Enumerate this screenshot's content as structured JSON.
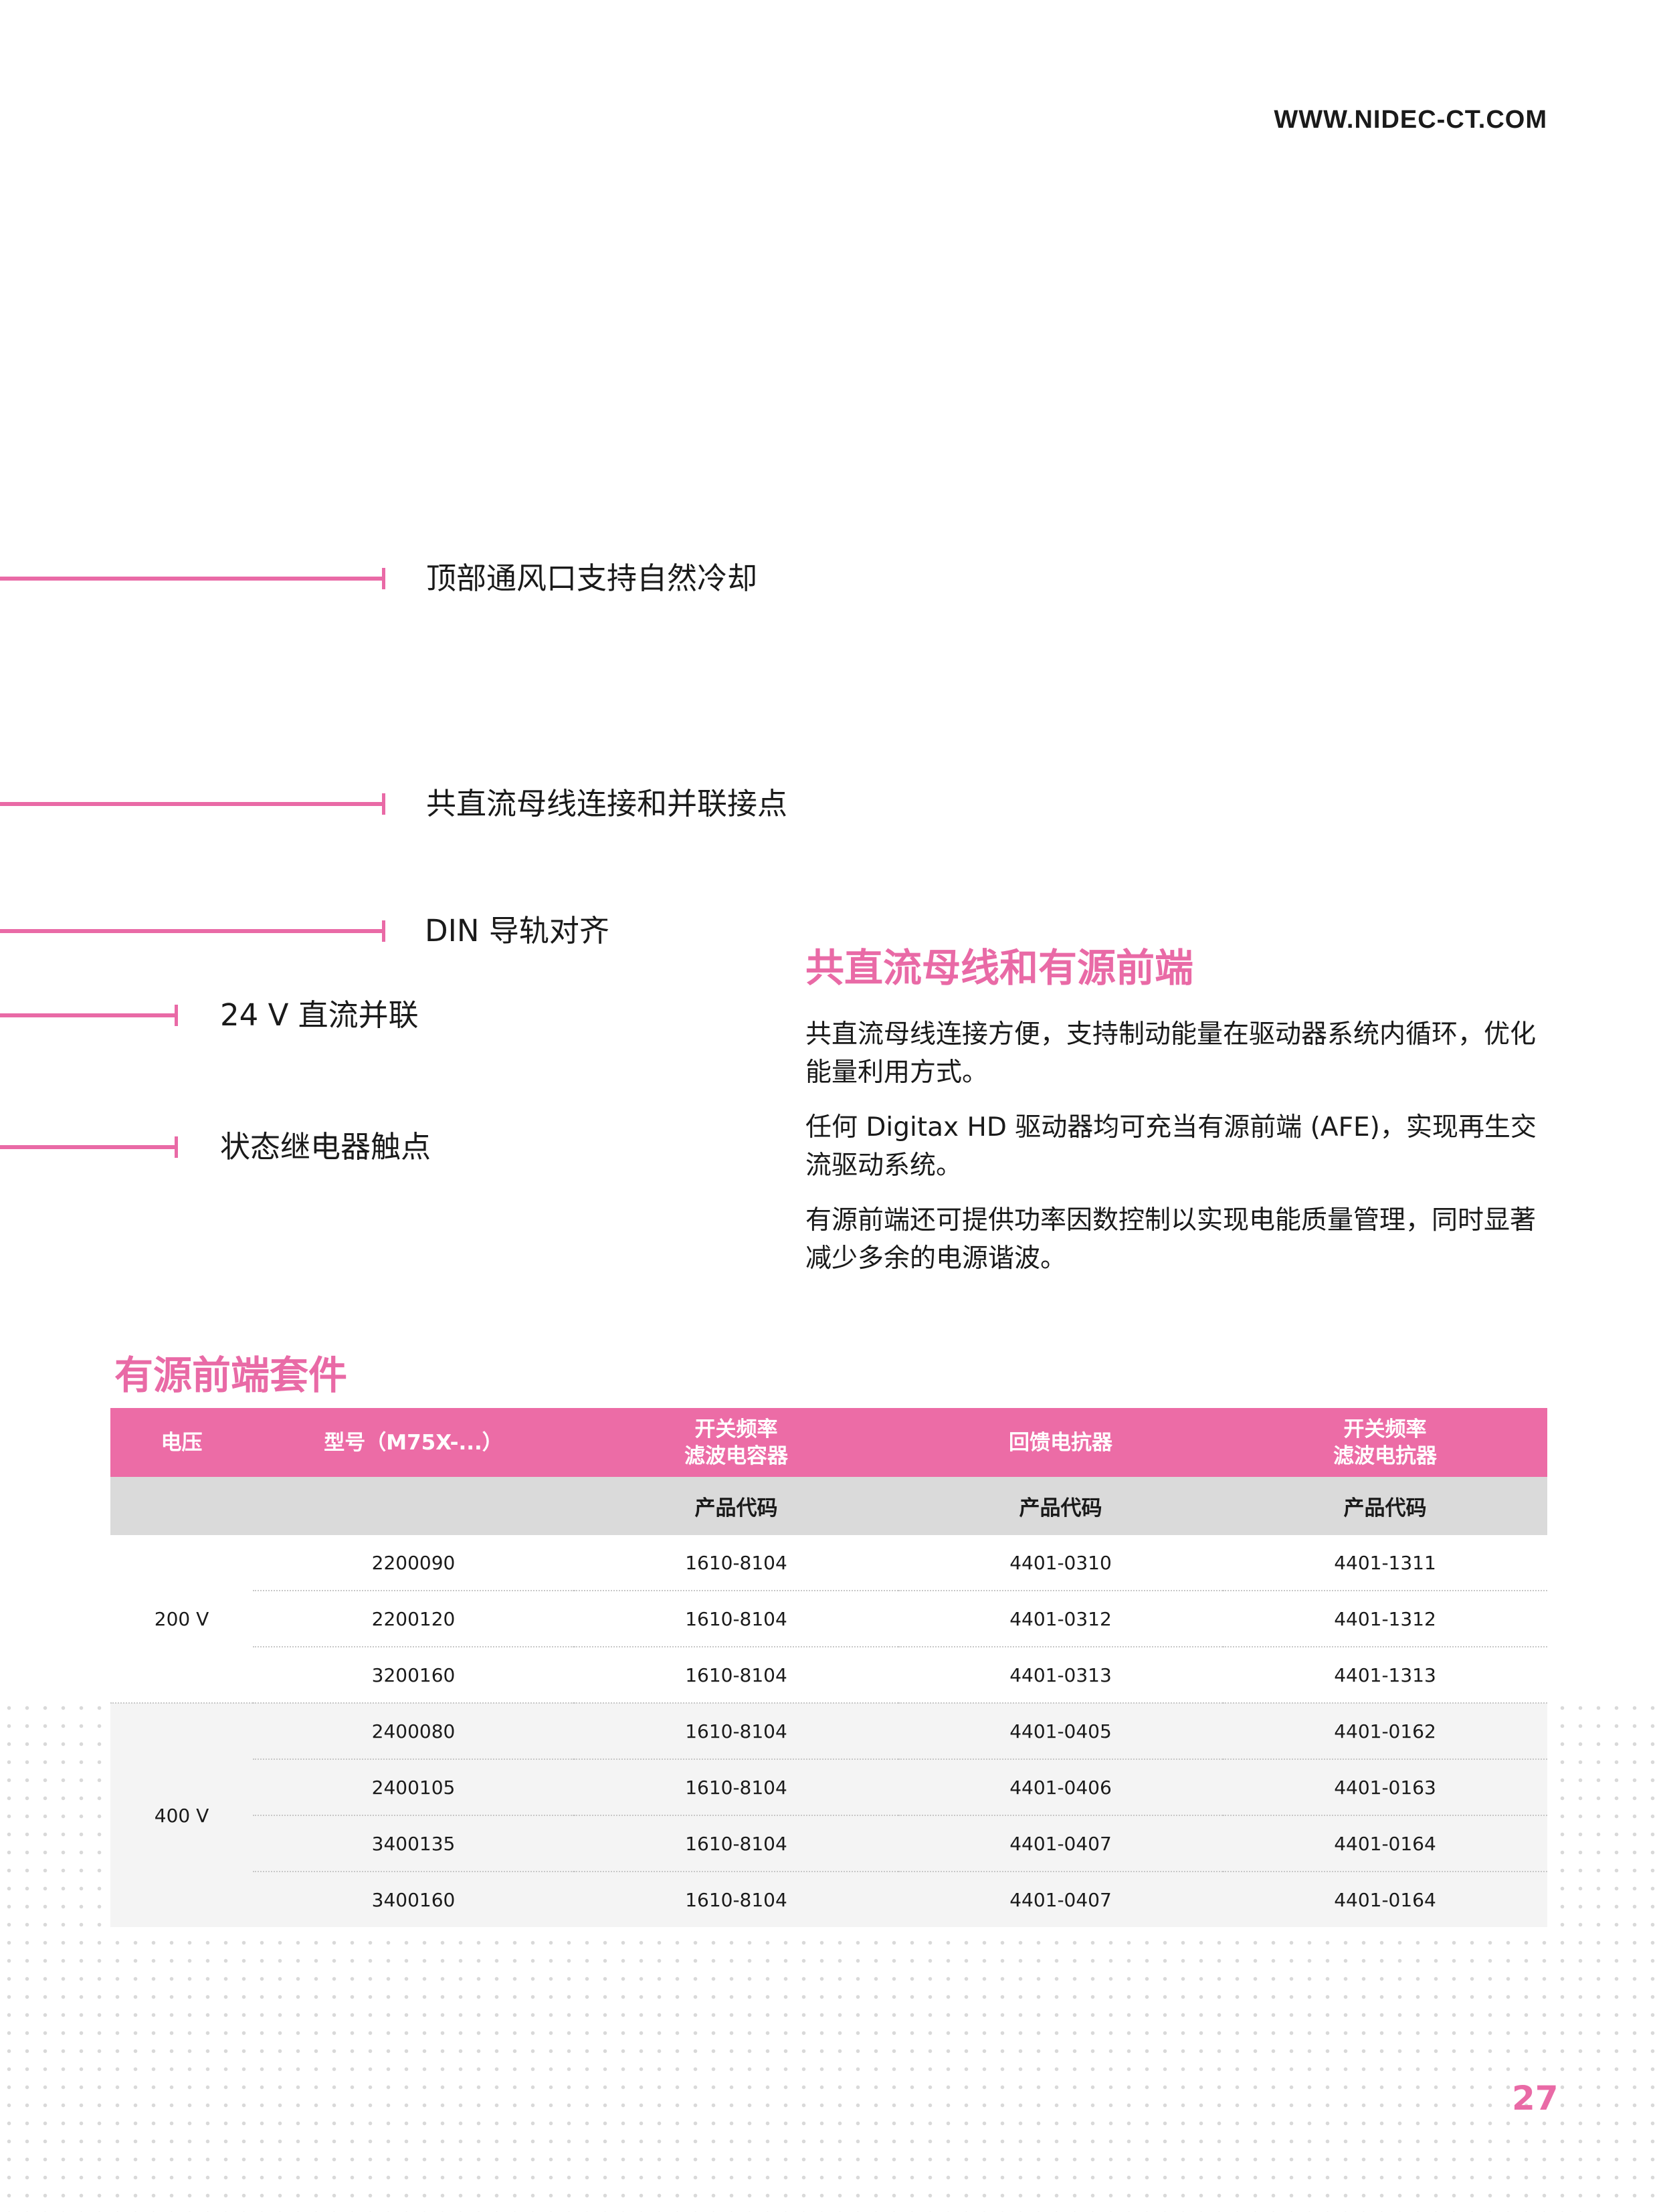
{
  "header": {
    "url": "WWW.NIDEC-CT.COM"
  },
  "callouts": [
    "顶部通风口支持自然冷却",
    "共直流母线连接和并联接点",
    "DIN 导轨对齐",
    "24 V 直流并联",
    "状态继电器触点"
  ],
  "section": {
    "title": "共直流母线和有源前端",
    "paragraphs": [
      "共直流母线连接方便，支持制动能量在驱动器系统内循环，优化能量利用方式。",
      "任何 Digitax HD 驱动器均可充当有源前端 (AFE)，实现再生交流驱动系统。",
      "有源前端还可提供功率因数控制以实现电能质量管理，同时显著减少多余的电源谐波。"
    ]
  },
  "table": {
    "title": "有源前端套件",
    "headers": [
      "电压",
      "型号（M75X-...）",
      "开关频率\n滤波电容器",
      "回馈电抗器",
      "开关频率\n滤波电抗器"
    ],
    "subheader": "产品代码",
    "groups": [
      {
        "voltage": "200 V",
        "rows": [
          [
            "2200090",
            "1610-8104",
            "4401-0310",
            "4401-1311"
          ],
          [
            "2200120",
            "1610-8104",
            "4401-0312",
            "4401-1312"
          ],
          [
            "3200160",
            "1610-8104",
            "4401-0313",
            "4401-1313"
          ]
        ]
      },
      {
        "voltage": "400 V",
        "rows": [
          [
            "2400080",
            "1610-8104",
            "4401-0405",
            "4401-0162"
          ],
          [
            "2400105",
            "1610-8104",
            "4401-0406",
            "4401-0163"
          ],
          [
            "3400135",
            "1610-8104",
            "4401-0407",
            "4401-0164"
          ],
          [
            "3400160",
            "1610-8104",
            "4401-0407",
            "4401-0164"
          ]
        ]
      }
    ]
  },
  "page_number": "27",
  "colors": {
    "accent": "#e96aa6",
    "header_bg": "#ec6ca6",
    "subheader_bg": "#dadada"
  }
}
